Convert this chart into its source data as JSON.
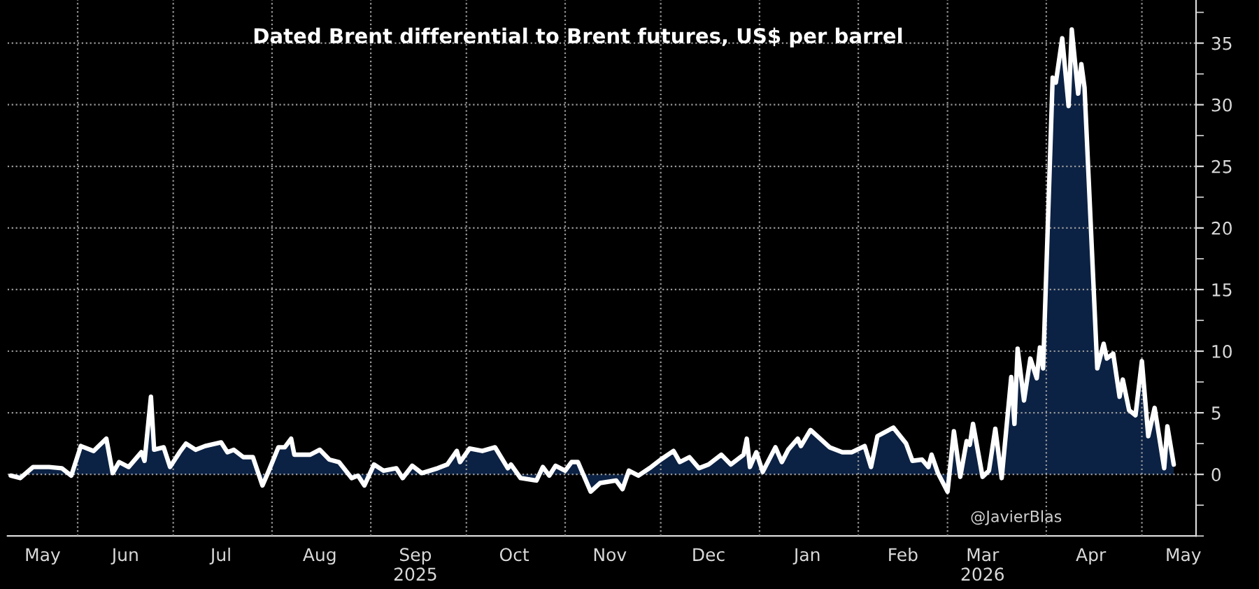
{
  "chart_data": {
    "type": "area",
    "title": "Dated Brent differential to Brent futures, US$ per barrel",
    "annotations": [
      "@JavierBlas"
    ],
    "x": [
      "2025-05-11",
      "2025-05-14",
      "2025-05-18",
      "2025-05-23",
      "2025-05-27",
      "2025-05-30",
      "2025-06-02",
      "2025-06-06",
      "2025-06-10",
      "2025-06-12",
      "2025-06-14",
      "2025-06-17",
      "2025-06-21",
      "2025-06-22",
      "2025-06-24",
      "2025-06-25",
      "2025-06-28",
      "2025-06-30",
      "2025-07-03",
      "2025-07-05",
      "2025-07-08",
      "2025-07-11",
      "2025-07-16",
      "2025-07-18",
      "2025-07-20",
      "2025-07-23",
      "2025-07-26",
      "2025-07-29",
      "2025-07-31",
      "2025-08-03",
      "2025-08-05",
      "2025-08-07",
      "2025-08-08",
      "2025-08-13",
      "2025-08-16",
      "2025-08-19",
      "2025-08-22",
      "2025-08-26",
      "2025-08-28",
      "2025-08-30",
      "2025-09-02",
      "2025-09-05",
      "2025-09-09",
      "2025-09-11",
      "2025-09-14",
      "2025-09-17",
      "2025-09-22",
      "2025-09-25",
      "2025-09-28",
      "2025-09-29",
      "2025-10-02",
      "2025-10-06",
      "2025-10-10",
      "2025-10-14",
      "2025-10-15",
      "2025-10-18",
      "2025-10-23",
      "2025-10-25",
      "2025-10-27",
      "2025-10-29",
      "2025-11-01",
      "2025-11-03",
      "2025-11-05",
      "2025-11-09",
      "2025-11-12",
      "2025-11-17",
      "2025-11-19",
      "2025-11-21",
      "2025-11-24",
      "2025-11-28",
      "2025-12-01",
      "2025-12-05",
      "2025-12-07",
      "2025-12-10",
      "2025-12-13",
      "2025-12-16",
      "2025-12-20",
      "2025-12-23",
      "2025-12-27",
      "2025-12-28",
      "2025-12-29",
      "2025-12-31",
      "2026-01-02",
      "2026-01-06",
      "2026-01-08",
      "2026-01-10",
      "2026-01-13",
      "2026-01-14",
      "2026-01-17",
      "2026-01-23",
      "2026-01-27",
      "2026-01-30",
      "2026-02-03",
      "2026-02-05",
      "2026-02-07",
      "2026-02-12",
      "2026-02-16",
      "2026-02-18",
      "2026-02-21",
      "2026-02-23",
      "2026-02-24",
      "2026-02-26",
      "2026-03-01",
      "2026-03-03",
      "2026-03-05",
      "2026-03-07",
      "2026-03-08",
      "2026-03-09",
      "2026-03-12",
      "2026-03-14",
      "2026-03-16",
      "2026-03-18",
      "2026-03-21",
      "2026-03-22",
      "2026-03-23",
      "2026-03-25",
      "2026-03-27",
      "2026-03-29",
      "2026-03-30",
      "2026-03-31",
      "2026-04-03",
      "2026-04-04",
      "2026-04-06",
      "2026-04-08",
      "2026-04-09",
      "2026-04-11",
      "2026-04-12",
      "2026-04-13",
      "2026-04-17",
      "2026-04-19",
      "2026-04-20",
      "2026-04-22",
      "2026-04-24",
      "2026-04-25",
      "2026-04-27",
      "2026-04-29",
      "2026-05-01",
      "2026-05-03",
      "2026-05-05",
      "2026-05-08",
      "2026-05-09",
      "2026-05-11"
    ],
    "series": [
      {
        "color": "#0c2244",
        "values": [
          -0.1,
          -0.3,
          0.6,
          0.6,
          0.5,
          -0.1,
          2.3,
          1.9,
          2.9,
          0.1,
          1.0,
          0.6,
          1.8,
          1.1,
          6.3,
          2.0,
          2.2,
          0.6,
          1.8,
          2.5,
          2.0,
          2.3,
          2.6,
          1.8,
          2.0,
          1.4,
          1.4,
          -0.9,
          0.3,
          2.2,
          2.2,
          2.9,
          1.6,
          1.6,
          2.0,
          1.2,
          1.0,
          -0.3,
          -0.1,
          -0.9,
          0.8,
          0.3,
          0.5,
          -0.3,
          0.7,
          0.1,
          0.5,
          0.8,
          1.9,
          1.0,
          2.1,
          1.9,
          2.2,
          0.5,
          0.8,
          -0.3,
          -0.5,
          0.6,
          -0.1,
          0.7,
          0.3,
          1.0,
          1.0,
          -1.4,
          -0.7,
          -0.5,
          -1.2,
          0.3,
          -0.1,
          0.6,
          1.2,
          1.9,
          1.0,
          1.4,
          0.5,
          0.8,
          1.6,
          0.8,
          1.6,
          2.9,
          0.6,
          1.8,
          0.2,
          2.2,
          1.0,
          2.0,
          2.9,
          2.3,
          3.6,
          2.2,
          1.8,
          1.8,
          2.3,
          0.6,
          3.1,
          3.8,
          2.5,
          1.1,
          1.2,
          0.6,
          1.6,
          0.1,
          -1.4,
          3.5,
          -0.2,
          2.7,
          2.4,
          4.1,
          -0.2,
          0.3,
          3.7,
          -0.3,
          7.9,
          4.1,
          10.2,
          6.0,
          9.4,
          7.8,
          10.3,
          8.6,
          32.2,
          31.8,
          35.4,
          29.9,
          36.1,
          30.9,
          33.3,
          31.4,
          8.6,
          10.6,
          9.4,
          9.8,
          6.3,
          7.7,
          5.2,
          4.8,
          9.2,
          3.1,
          5.4,
          0.5,
          3.9,
          0.8
        ]
      }
    ],
    "xlim": [
      "2025-05-10",
      "2026-05-18"
    ],
    "xticks": [
      {
        "value": "2025-06-01",
        "label": null
      },
      {
        "value": "2025-07-01",
        "label": null
      },
      {
        "value": "2025-08-01",
        "label": null
      },
      {
        "value": "2025-09-01",
        "label": null
      },
      {
        "value": "2025-10-01",
        "label": null
      },
      {
        "value": "2025-11-01",
        "label": null
      },
      {
        "value": "2025-12-01",
        "label": null
      },
      {
        "value": "2026-01-01",
        "label": null
      },
      {
        "value": "2026-02-01",
        "label": null
      },
      {
        "value": "2026-03-01",
        "label": null
      },
      {
        "value": "2026-04-01",
        "label": null
      },
      {
        "value": "2026-05-01",
        "label": null
      },
      {
        "value": "2025-05-21",
        "label": "May"
      },
      {
        "value": "2025-06-16",
        "label": "Jun"
      },
      {
        "value": "2025-07-16",
        "label": "Jul"
      },
      {
        "value": "2025-08-16",
        "label": "Aug"
      },
      {
        "value": "2025-09-15",
        "label": "Sep\n2025"
      },
      {
        "value": "2025-10-16",
        "label": "Oct"
      },
      {
        "value": "2025-11-15",
        "label": "Nov"
      },
      {
        "value": "2025-12-16",
        "label": "Dec"
      },
      {
        "value": "2026-01-16",
        "label": "Jan"
      },
      {
        "value": "2026-02-15",
        "label": "Feb"
      },
      {
        "value": "2026-03-12",
        "label": "Mar\n2026"
      },
      {
        "value": "2026-04-15",
        "label": "Apr"
      },
      {
        "value": "2026-05-14",
        "label": "May"
      }
    ],
    "ylim": [
      -5,
      38.5
    ],
    "yticks": [
      {
        "value": -5,
        "label": null
      },
      {
        "value": -2.5,
        "label": null
      },
      0,
      {
        "value": 2.5,
        "label": null
      },
      5,
      {
        "value": 7.5,
        "label": null
      },
      10,
      {
        "value": 12.5,
        "label": null
      },
      15,
      {
        "value": 17.5,
        "label": null
      },
      20,
      {
        "value": 22.5,
        "label": null
      },
      25,
      {
        "value": 27.5,
        "label": null
      },
      30,
      {
        "value": 32.5,
        "label": null
      },
      35,
      {
        "value": 37.5,
        "label": null
      }
    ],
    "grid": true
  }
}
